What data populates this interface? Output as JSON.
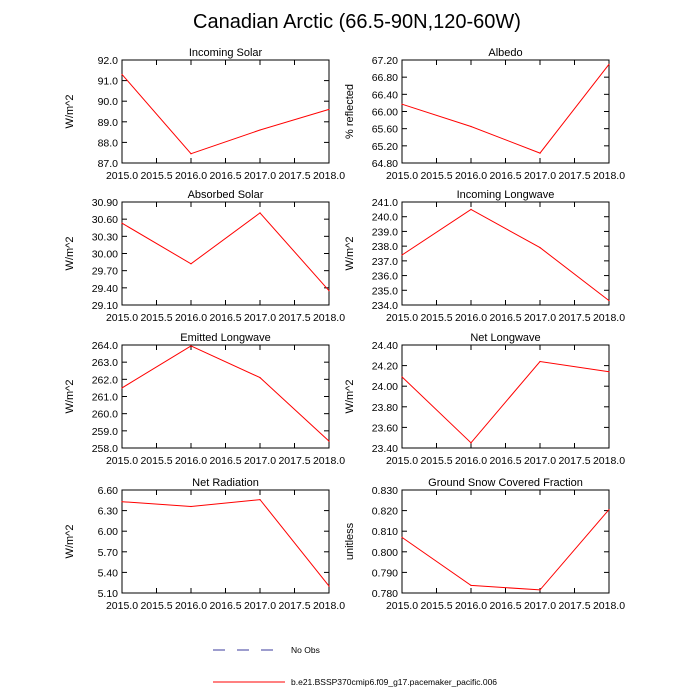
{
  "title": "Canadian Arctic (66.5-90N,120-60W)",
  "colors": {
    "model_line": "#ff0000",
    "obs_line": "#3b3b9e",
    "axis": "#000000"
  },
  "legend": [
    {
      "label": "No Obs",
      "style": "dashed",
      "color": "#3b3b9e"
    },
    {
      "label": "b.e21.BSSP370cmip6.f09_g17.pacemaker_pacific.006",
      "style": "solid",
      "color": "#ff0000"
    }
  ],
  "chart_data": [
    {
      "type": "line",
      "title": "Incoming Solar",
      "xlabel": "",
      "ylabel": "W/m^2",
      "x": [
        2015.0,
        2016.0,
        2017.0,
        2018.0
      ],
      "values": [
        91.3,
        87.45,
        88.6,
        89.6
      ],
      "xlim": [
        2015.0,
        2018.0
      ],
      "ylim": [
        87.0,
        92.0
      ],
      "xticks": [
        "2015.0",
        "2015.5",
        "2016.0",
        "2016.5",
        "2017.0",
        "2017.5",
        "2018.0"
      ],
      "yticks": [
        "87.0",
        "88.0",
        "89.0",
        "90.0",
        "91.0",
        "92.0"
      ]
    },
    {
      "type": "line",
      "title": "Albedo",
      "xlabel": "",
      "ylabel": "% reflected",
      "x": [
        2015.0,
        2016.0,
        2017.0,
        2018.0
      ],
      "values": [
        66.17,
        65.65,
        65.03,
        67.1
      ],
      "xlim": [
        2015.0,
        2018.0
      ],
      "ylim": [
        64.8,
        67.2
      ],
      "xticks": [
        "2015.0",
        "2015.5",
        "2016.0",
        "2016.5",
        "2017.0",
        "2017.5",
        "2018.0"
      ],
      "yticks": [
        "64.80",
        "65.20",
        "65.60",
        "66.00",
        "66.40",
        "66.80",
        "67.20"
      ]
    },
    {
      "type": "line",
      "title": "Absorbed Solar",
      "xlabel": "",
      "ylabel": "W/m^2",
      "x": [
        2015.0,
        2016.0,
        2017.0,
        2018.0
      ],
      "values": [
        30.53,
        29.82,
        30.71,
        29.35
      ],
      "xlim": [
        2015.0,
        2018.0
      ],
      "ylim": [
        29.1,
        30.9
      ],
      "xticks": [
        "2015.0",
        "2015.5",
        "2016.0",
        "2016.5",
        "2017.0",
        "2017.5",
        "2018.0"
      ],
      "yticks": [
        "29.10",
        "29.40",
        "29.70",
        "30.00",
        "30.30",
        "30.60",
        "30.90"
      ]
    },
    {
      "type": "line",
      "title": "Incoming Longwave",
      "xlabel": "",
      "ylabel": "W/m^2",
      "x": [
        2015.0,
        2016.0,
        2017.0,
        2018.0
      ],
      "values": [
        237.4,
        240.5,
        237.9,
        234.3
      ],
      "xlim": [
        2015.0,
        2018.0
      ],
      "ylim": [
        234.0,
        241.0
      ],
      "xticks": [
        "2015.0",
        "2015.5",
        "2016.0",
        "2016.5",
        "2017.0",
        "2017.5",
        "2018.0"
      ],
      "yticks": [
        "234.0",
        "235.0",
        "236.0",
        "237.0",
        "238.0",
        "239.0",
        "240.0",
        "241.0"
      ]
    },
    {
      "type": "line",
      "title": "Emitted Longwave",
      "xlabel": "",
      "ylabel": "W/m^2",
      "x": [
        2015.0,
        2016.0,
        2017.0,
        2018.0
      ],
      "values": [
        261.5,
        263.95,
        262.1,
        258.4
      ],
      "xlim": [
        2015.0,
        2018.0
      ],
      "ylim": [
        258.0,
        264.0
      ],
      "xticks": [
        "2015.0",
        "2015.5",
        "2016.0",
        "2016.5",
        "2017.0",
        "2017.5",
        "2018.0"
      ],
      "yticks": [
        "258.0",
        "259.0",
        "260.0",
        "261.0",
        "262.0",
        "263.0",
        "264.0"
      ]
    },
    {
      "type": "line",
      "title": "Net Longwave",
      "xlabel": "",
      "ylabel": "W/m^2",
      "x": [
        2015.0,
        2016.0,
        2017.0,
        2018.0
      ],
      "values": [
        24.09,
        23.45,
        24.24,
        24.14
      ],
      "xlim": [
        2015.0,
        2018.0
      ],
      "ylim": [
        23.4,
        24.4
      ],
      "xticks": [
        "2015.0",
        "2015.5",
        "2016.0",
        "2016.5",
        "2017.0",
        "2017.5",
        "2018.0"
      ],
      "yticks": [
        "23.40",
        "23.60",
        "23.80",
        "24.00",
        "24.20",
        "24.40"
      ]
    },
    {
      "type": "line",
      "title": "Net Radiation",
      "xlabel": "",
      "ylabel": "W/m^2",
      "x": [
        2015.0,
        2016.0,
        2017.0,
        2018.0
      ],
      "values": [
        6.43,
        6.36,
        6.46,
        5.2
      ],
      "xlim": [
        2015.0,
        2018.0
      ],
      "ylim": [
        5.1,
        6.6
      ],
      "xticks": [
        "2015.0",
        "2015.5",
        "2016.0",
        "2016.5",
        "2017.0",
        "2017.5",
        "2018.0"
      ],
      "yticks": [
        "5.10",
        "5.40",
        "5.70",
        "6.00",
        "6.30",
        "6.60"
      ]
    },
    {
      "type": "line",
      "title": "Ground Snow Covered Fraction",
      "xlabel": "",
      "ylabel": "unitless",
      "x": [
        2015.0,
        2016.0,
        2017.0,
        2018.0
      ],
      "values": [
        0.807,
        0.7837,
        0.7815,
        0.8205
      ],
      "xlim": [
        2015.0,
        2018.0
      ],
      "ylim": [
        0.78,
        0.83
      ],
      "xticks": [
        "2015.0",
        "2015.5",
        "2016.0",
        "2016.5",
        "2017.0",
        "2017.5",
        "2018.0"
      ],
      "yticks": [
        "0.780",
        "0.790",
        "0.800",
        "0.810",
        "0.820",
        "0.830"
      ]
    }
  ]
}
